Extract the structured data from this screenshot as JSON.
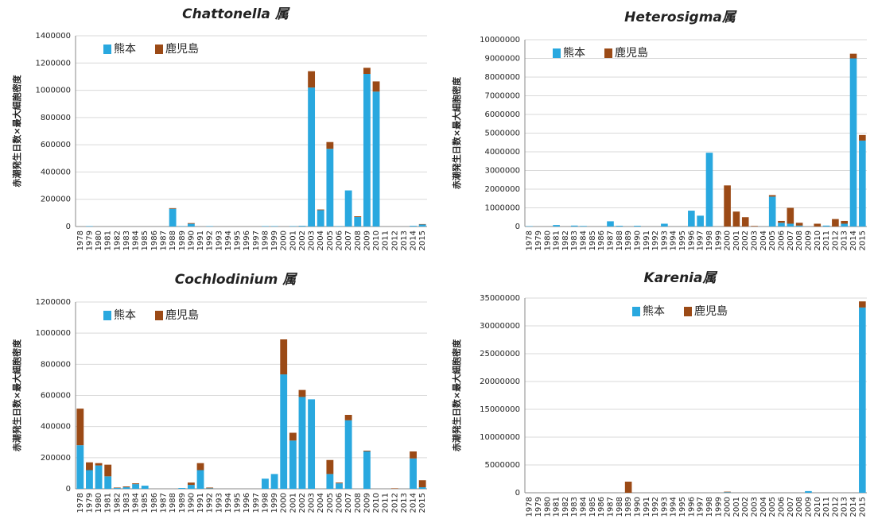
{
  "chart_data": [
    {
      "type": "bar",
      "stacked": true,
      "title": "Chattonella 属",
      "ylabel": "赤潮発生日数×最大細胞密度",
      "categories": [
        "1978",
        "1979",
        "1980",
        "1981",
        "1982",
        "1983",
        "1984",
        "1985",
        "1986",
        "1987",
        "1988",
        "1989",
        "1990",
        "1991",
        "1992",
        "1993",
        "1994",
        "1995",
        "1996",
        "1997",
        "1998",
        "1999",
        "2000",
        "2001",
        "2002",
        "2003",
        "2004",
        "2005",
        "2006",
        "2007",
        "2008",
        "2009",
        "2010",
        "2011",
        "2012",
        "2013",
        "2014",
        "2015"
      ],
      "series": [
        {
          "name": "熊本",
          "color": "#29a8df",
          "values": [
            0,
            3000,
            0,
            0,
            0,
            0,
            0,
            0,
            0,
            0,
            130000,
            3000,
            20000,
            0,
            3000,
            0,
            0,
            0,
            0,
            0,
            3000,
            3000,
            0,
            3000,
            5000,
            1020000,
            120000,
            570000,
            3000,
            265000,
            70000,
            1120000,
            990000,
            0,
            0,
            0,
            5000,
            15000
          ]
        },
        {
          "name": "鹿児島",
          "color": "#9b4a16",
          "values": [
            0,
            0,
            0,
            0,
            0,
            0,
            0,
            0,
            0,
            0,
            5000,
            0,
            5000,
            0,
            0,
            0,
            0,
            0,
            0,
            0,
            0,
            0,
            0,
            0,
            0,
            120000,
            5000,
            50000,
            0,
            0,
            5000,
            45000,
            75000,
            0,
            0,
            0,
            0,
            3000
          ]
        }
      ],
      "ylim": [
        0,
        1400000
      ],
      "yticks": [
        0,
        200000,
        400000,
        600000,
        800000,
        1000000,
        1200000,
        1400000
      ],
      "legend": "upper left"
    },
    {
      "type": "bar",
      "stacked": true,
      "title": "Heterosigma属",
      "ylabel": "赤潮発生日数×最大細胞密度",
      "categories": [
        "1978",
        "1979",
        "1980",
        "1981",
        "1982",
        "1983",
        "1984",
        "1985",
        "1986",
        "1987",
        "1988",
        "1989",
        "1990",
        "1991",
        "1992",
        "1993",
        "1994",
        "1995",
        "1996",
        "1997",
        "1998",
        "1999",
        "2000",
        "2001",
        "2002",
        "2003",
        "2004",
        "2005",
        "2006",
        "2007",
        "2008",
        "2009",
        "2010",
        "2011",
        "2012",
        "2013",
        "2014",
        "2015"
      ],
      "series": [
        {
          "name": "熊本",
          "color": "#29a8df",
          "values": [
            20000,
            0,
            0,
            80000,
            0,
            50000,
            30000,
            0,
            0,
            280000,
            40000,
            0,
            40000,
            0,
            0,
            150000,
            0,
            0,
            850000,
            580000,
            3950000,
            0,
            0,
            0,
            0,
            0,
            0,
            1600000,
            200000,
            150000,
            50000,
            0,
            0,
            50000,
            0,
            150000,
            9000000,
            4600000
          ]
        },
        {
          "name": "鹿児島",
          "color": "#9b4a16",
          "values": [
            0,
            0,
            0,
            0,
            0,
            0,
            0,
            0,
            0,
            0,
            0,
            0,
            0,
            0,
            0,
            0,
            0,
            0,
            0,
            0,
            0,
            0,
            2200000,
            800000,
            500000,
            30000,
            0,
            80000,
            100000,
            850000,
            150000,
            0,
            150000,
            0,
            400000,
            150000,
            250000,
            300000
          ]
        }
      ],
      "ylim": [
        0,
        10000000
      ],
      "yticks": [
        0,
        1000000,
        2000000,
        3000000,
        4000000,
        5000000,
        6000000,
        7000000,
        8000000,
        9000000,
        10000000
      ],
      "legend": "upper left"
    },
    {
      "type": "bar",
      "stacked": true,
      "title": "Cochlodinium 属",
      "ylabel": "赤潮発生日数×最大細胞密度",
      "categories": [
        "1978",
        "1979",
        "1980",
        "1981",
        "1982",
        "1983",
        "1984",
        "1985",
        "1986",
        "1987",
        "1988",
        "1989",
        "1990",
        "1991",
        "1992",
        "1993",
        "1994",
        "1995",
        "1996",
        "1997",
        "1998",
        "1999",
        "2000",
        "2001",
        "2002",
        "2003",
        "2004",
        "2005",
        "2006",
        "2007",
        "2008",
        "2009",
        "2010",
        "2011",
        "2012",
        "2013",
        "2014",
        "2015"
      ],
      "series": [
        {
          "name": "熊本",
          "color": "#29a8df",
          "values": [
            280000,
            120000,
            150000,
            80000,
            5000,
            10000,
            30000,
            20000,
            0,
            0,
            0,
            5000,
            25000,
            120000,
            3000,
            0,
            0,
            0,
            0,
            0,
            65000,
            95000,
            735000,
            310000,
            590000,
            575000,
            0,
            95000,
            35000,
            440000,
            0,
            240000,
            0,
            0,
            0,
            0,
            195000,
            10000
          ]
        },
        {
          "name": "鹿児島",
          "color": "#9b4a16",
          "values": [
            235000,
            50000,
            15000,
            75000,
            3000,
            5000,
            5000,
            0,
            0,
            0,
            0,
            0,
            15000,
            45000,
            5000,
            0,
            0,
            0,
            0,
            0,
            0,
            0,
            225000,
            50000,
            45000,
            0,
            0,
            90000,
            5000,
            35000,
            0,
            5000,
            0,
            0,
            3000,
            0,
            45000,
            45000
          ]
        }
      ],
      "ylim": [
        0,
        1200000
      ],
      "yticks": [
        0,
        200000,
        400000,
        600000,
        800000,
        1000000,
        1200000
      ],
      "legend": "upper left"
    },
    {
      "type": "bar",
      "stacked": true,
      "title": "Karenia属",
      "ylabel": "赤潮発生日数×最大細胞密度",
      "categories": [
        "1978",
        "1979",
        "1980",
        "1981",
        "1982",
        "1983",
        "1984",
        "1985",
        "1986",
        "1987",
        "1988",
        "1989",
        "1990",
        "1991",
        "1992",
        "1993",
        "1994",
        "1995",
        "1996",
        "1997",
        "1998",
        "1999",
        "2000",
        "2001",
        "2002",
        "2003",
        "2004",
        "2005",
        "2006",
        "2007",
        "2008",
        "2009",
        "2010",
        "2011",
        "2012",
        "2013",
        "2014",
        "2015"
      ],
      "series": [
        {
          "name": "熊本",
          "color": "#29a8df",
          "values": [
            0,
            0,
            0,
            0,
            0,
            0,
            0,
            0,
            0,
            0,
            0,
            0,
            0,
            0,
            0,
            0,
            0,
            0,
            0,
            0,
            0,
            0,
            100000,
            0,
            0,
            0,
            0,
            0,
            0,
            0,
            0,
            300000,
            0,
            0,
            0,
            0,
            0,
            33300000
          ]
        },
        {
          "name": "鹿児島",
          "color": "#9b4a16",
          "values": [
            0,
            0,
            0,
            0,
            0,
            0,
            0,
            0,
            0,
            0,
            0,
            2000000,
            0,
            0,
            0,
            0,
            0,
            0,
            0,
            0,
            0,
            0,
            100000,
            0,
            0,
            0,
            0,
            0,
            0,
            0,
            0,
            0,
            0,
            0,
            0,
            0,
            0,
            1100000
          ]
        }
      ],
      "ylim": [
        0,
        35000000
      ],
      "yticks": [
        0,
        5000000,
        10000000,
        15000000,
        20000000,
        25000000,
        30000000,
        35000000
      ],
      "legend": "upper center"
    }
  ]
}
